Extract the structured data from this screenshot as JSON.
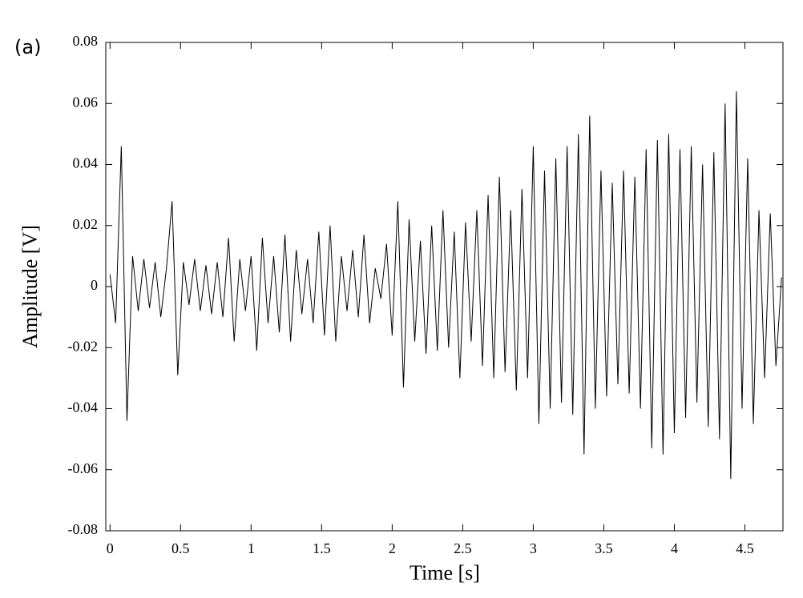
{
  "chart_data": {
    "type": "line",
    "panel_label": "(a)",
    "xlabel": "Time [s]",
    "ylabel": "Amplitude [V]",
    "x": [
      0,
      0.04,
      0.08,
      0.12,
      0.16,
      0.2,
      0.24,
      0.28,
      0.32,
      0.36,
      0.4,
      0.44,
      0.48,
      0.52,
      0.56,
      0.6,
      0.64,
      0.68,
      0.72,
      0.76,
      0.8,
      0.84,
      0.88,
      0.92,
      0.96,
      1,
      1.04,
      1.08,
      1.12,
      1.16,
      1.2,
      1.24,
      1.28,
      1.32,
      1.36,
      1.4,
      1.44,
      1.48,
      1.52,
      1.56,
      1.6,
      1.64,
      1.68,
      1.72,
      1.76,
      1.8,
      1.84,
      1.88,
      1.92,
      1.96,
      2,
      2.04,
      2.08,
      2.12,
      2.16,
      2.2,
      2.24,
      2.28,
      2.32,
      2.36,
      2.4,
      2.44,
      2.48,
      2.52,
      2.56,
      2.6,
      2.64,
      2.68,
      2.72,
      2.76,
      2.8,
      2.84,
      2.88,
      2.92,
      2.96,
      3,
      3.04,
      3.08,
      3.12,
      3.16,
      3.2,
      3.24,
      3.28,
      3.32,
      3.36,
      3.4,
      3.44,
      3.48,
      3.52,
      3.56,
      3.6,
      3.64,
      3.68,
      3.72,
      3.76,
      3.8,
      3.84,
      3.88,
      3.92,
      3.96,
      4,
      4.04,
      4.08,
      4.12,
      4.16,
      4.2,
      4.24,
      4.28,
      4.32,
      4.36,
      4.4,
      4.44,
      4.48,
      4.52,
      4.56,
      4.6,
      4.64,
      4.68,
      4.72,
      4.76
    ],
    "series": [
      {
        "color": "#000000",
        "values": [
          0.004,
          -0.012,
          0.046,
          -0.044,
          0.01,
          -0.008,
          0.009,
          -0.007,
          0.008,
          -0.01,
          0.006,
          0.028,
          -0.029,
          0.008,
          -0.006,
          0.009,
          -0.008,
          0.007,
          -0.009,
          0.008,
          -0.01,
          0.016,
          -0.018,
          0.009,
          -0.008,
          0.01,
          -0.021,
          0.016,
          -0.012,
          0.01,
          -0.015,
          0.017,
          -0.018,
          0.012,
          -0.009,
          0.009,
          -0.012,
          0.018,
          -0.016,
          0.02,
          -0.018,
          0.01,
          -0.008,
          0.012,
          -0.01,
          0.017,
          -0.012,
          0.006,
          -0.004,
          0.014,
          -0.016,
          0.028,
          -0.033,
          0.022,
          -0.018,
          0.015,
          -0.022,
          0.02,
          -0.021,
          0.025,
          -0.02,
          0.018,
          -0.03,
          0.021,
          -0.018,
          0.025,
          -0.026,
          0.03,
          -0.03,
          0.036,
          -0.028,
          0.025,
          -0.034,
          0.032,
          -0.03,
          0.046,
          -0.045,
          0.038,
          -0.04,
          0.042,
          -0.038,
          0.046,
          -0.042,
          0.05,
          -0.055,
          0.056,
          -0.04,
          0.038,
          -0.036,
          0.034,
          -0.032,
          0.038,
          -0.035,
          0.036,
          -0.04,
          0.045,
          -0.053,
          0.048,
          -0.055,
          0.05,
          -0.048,
          0.045,
          -0.043,
          0.046,
          -0.038,
          0.04,
          -0.046,
          0.044,
          -0.05,
          0.06,
          -0.063,
          0.064,
          -0.04,
          0.042,
          -0.045,
          0.025,
          -0.03,
          0.024,
          -0.026,
          0.003
        ]
      }
    ],
    "xlim": [
      -0.03,
      4.77
    ],
    "ylim": [
      -0.08,
      0.08
    ],
    "xticks": [
      0,
      0.5,
      1,
      1.5,
      2,
      2.5,
      3,
      3.5,
      4,
      4.5
    ],
    "yticks": [
      -0.08,
      -0.06,
      -0.04,
      -0.02,
      0,
      0.02,
      0.04,
      0.06,
      0.08
    ]
  }
}
